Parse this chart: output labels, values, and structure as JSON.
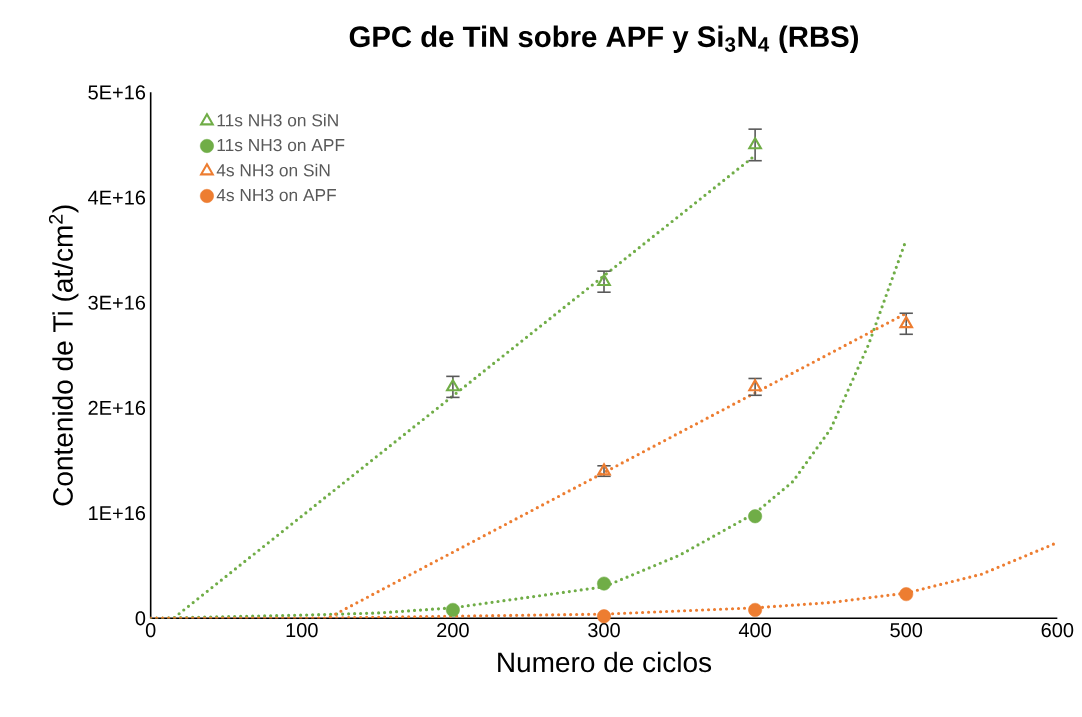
{
  "chart_data": {
    "type": "scatter",
    "title": "GPC de TiN sobre APF y Si$_{3}$N$_{4}$ (RBS)",
    "xlabel": "Numero de ciclos",
    "ylabel": "Contenido de Ti (at/cm$^{2}$)",
    "xlim": [
      0,
      600
    ],
    "xticks": [
      0,
      100,
      200,
      300,
      400,
      500,
      600
    ],
    "ylim": [
      0,
      5e+16
    ],
    "yticks": [
      0,
      {
        "value": 1e+16,
        "label": "1E+16"
      },
      {
        "value": 2e+16,
        "label": "2E+16"
      },
      {
        "value": 3e+16,
        "label": "3E+16"
      },
      {
        "value": 4e+16,
        "label": "4E+16"
      },
      {
        "value": 5e+16,
        "label": "5E+16"
      }
    ],
    "legend": "top left",
    "grid": false,
    "series": [
      {
        "name": "11s NH3 on SiN",
        "color": "#70ad47",
        "marker": "triangle",
        "x": [
          200,
          300,
          400
        ],
        "values": [
          2.2e+16,
          3.2e+16,
          4.5e+16
        ],
        "errors": [
          1000000000000000.0,
          1000000000000000.0,
          1500000000000000.0
        ]
      },
      {
        "name": "11s NH3 on APF",
        "color": "#70ad47",
        "marker": "circle",
        "x": [
          200,
          300,
          400
        ],
        "values": [
          800000000000000.0,
          3300000000000000.0,
          9700000000000000.0
        ]
      },
      {
        "name": "4s NH3 on SiN",
        "color": "#ed7d31",
        "marker": "triangle",
        "x": [
          300,
          400,
          500
        ],
        "values": [
          1.4e+16,
          2.2e+16,
          2.8e+16
        ],
        "errors": [
          500000000000000.0,
          800000000000000.0,
          1000000000000000.0
        ]
      },
      {
        "name": "4s NH3 on APF",
        "color": "#ed7d31",
        "marker": "circle",
        "x": [
          300,
          400,
          500
        ],
        "values": [
          200000000000000.0,
          800000000000000.0,
          2300000000000000.0
        ]
      },
      {
        "type": "line",
        "color": "#70ad47",
        "line_style": "dotted",
        "marker": "none",
        "x": [
          0,
          15,
          400
        ],
        "values": [
          0,
          0,
          4.4e+16
        ]
      },
      {
        "type": "line",
        "color": "#70ad47",
        "line_style": "dotted",
        "marker": "none",
        "x": [
          0,
          100,
          150,
          200,
          250,
          300,
          350,
          400,
          425,
          450,
          475,
          500
        ],
        "values": [
          0,
          300000000000000.0,
          500000000000000.0,
          1000000000000000.0,
          2000000000000000.0,
          3000000000000000.0,
          6000000000000000.0,
          1e+16,
          1.3e+16,
          1.8e+16,
          2.6e+16,
          3.6e+16
        ]
      },
      {
        "type": "line",
        "color": "#ed7d31",
        "line_style": "dotted",
        "marker": "none",
        "x": [
          0,
          117,
          500
        ],
        "values": [
          0,
          0,
          2.9e+16
        ]
      },
      {
        "type": "line",
        "color": "#ed7d31",
        "line_style": "dotted",
        "marker": "none",
        "x": [
          0,
          100,
          200,
          300,
          400,
          450,
          500,
          550,
          600
        ],
        "values": [
          0,
          0,
          200000000000000.0,
          400000000000000.0,
          1000000000000000.0,
          1500000000000000.0,
          2400000000000000.0,
          4200000000000000.0,
          7200000000000000.0
        ]
      }
    ]
  }
}
